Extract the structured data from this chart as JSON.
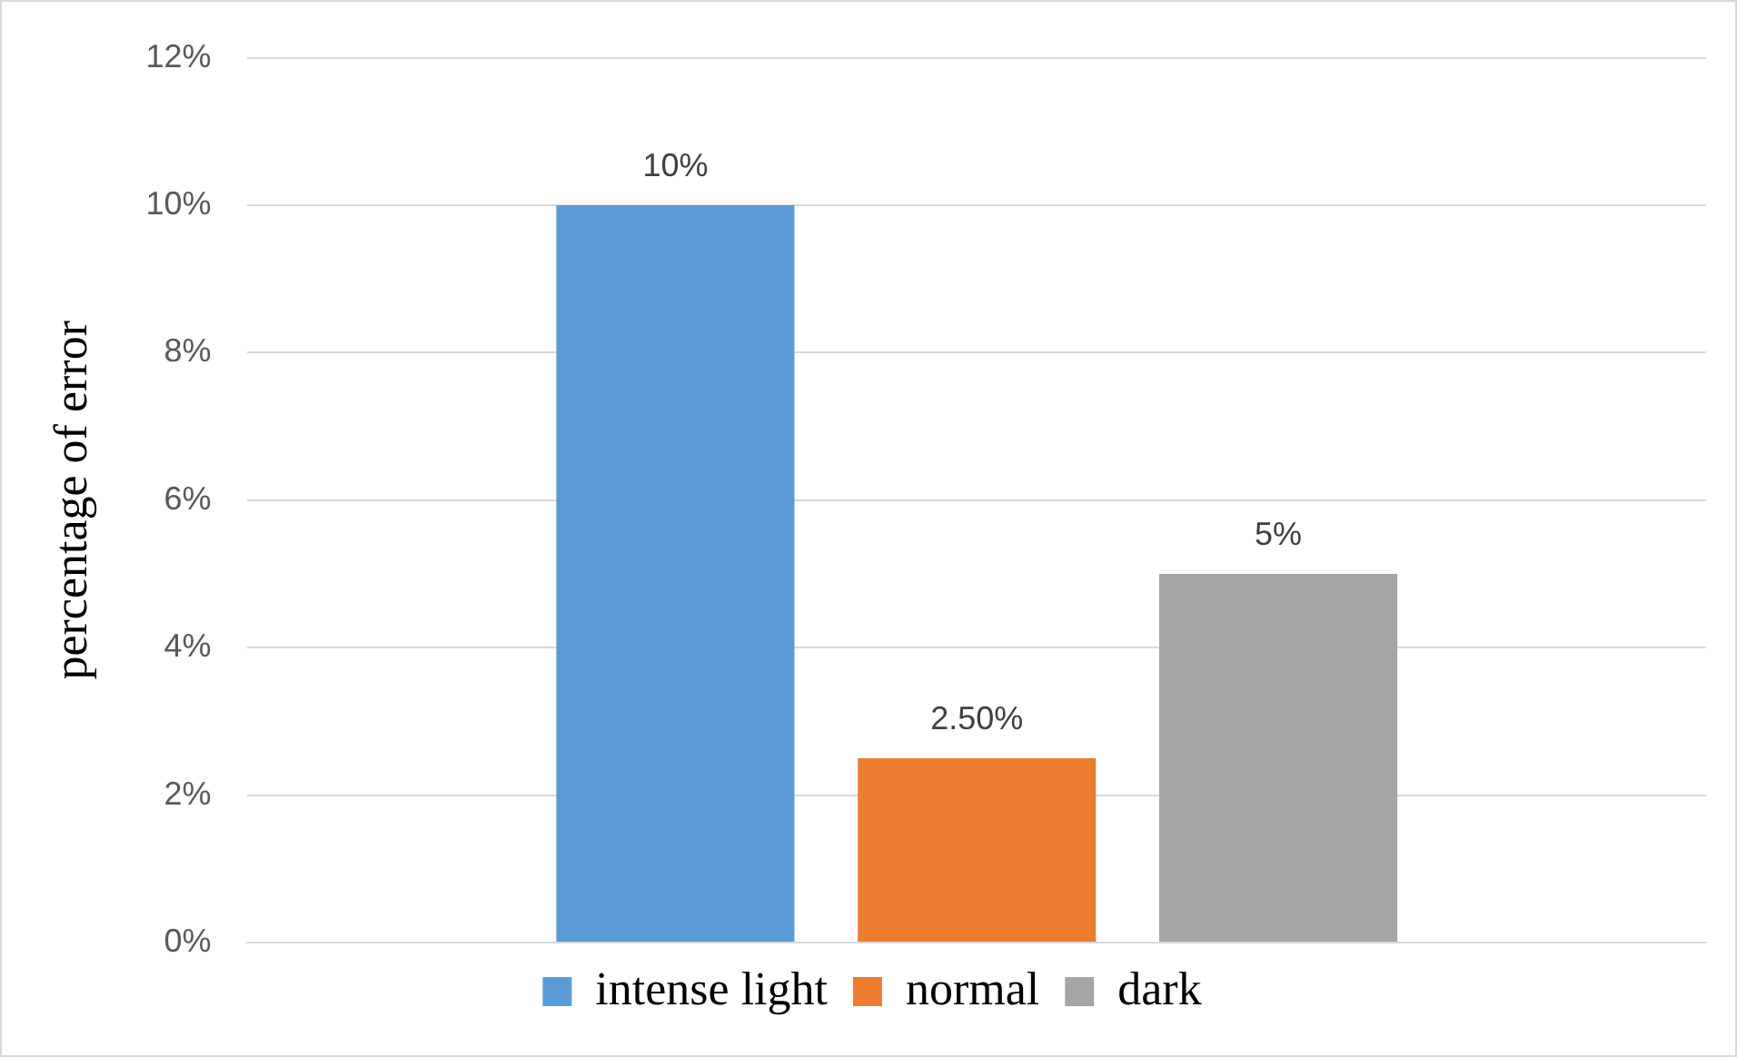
{
  "chart_data": {
    "type": "bar",
    "ylabel": "percentage of error",
    "categories": [
      null
    ],
    "series": [
      {
        "name": "intense light",
        "color": "#5b9bd5",
        "values": [
          10
        ],
        "value_labels": [
          "10%"
        ]
      },
      {
        "name": "normal",
        "color": "#ed7d31",
        "values": [
          2.5
        ],
        "value_labels": [
          "2.50%"
        ]
      },
      {
        "name": "dark",
        "color": "#a5a5a5",
        "values": [
          5
        ],
        "value_labels": [
          "5%"
        ]
      }
    ],
    "ylim": [
      0,
      12
    ],
    "yticks": [
      {
        "value": 0,
        "label": "0%"
      },
      {
        "value": 2,
        "label": "2%"
      },
      {
        "value": 4,
        "label": "4%"
      },
      {
        "value": 6,
        "label": "6%"
      },
      {
        "value": 8,
        "label": "8%"
      },
      {
        "value": 10,
        "label": "10%"
      },
      {
        "value": 12,
        "label": "12%"
      }
    ],
    "grid": "y",
    "legend": "bottom"
  }
}
